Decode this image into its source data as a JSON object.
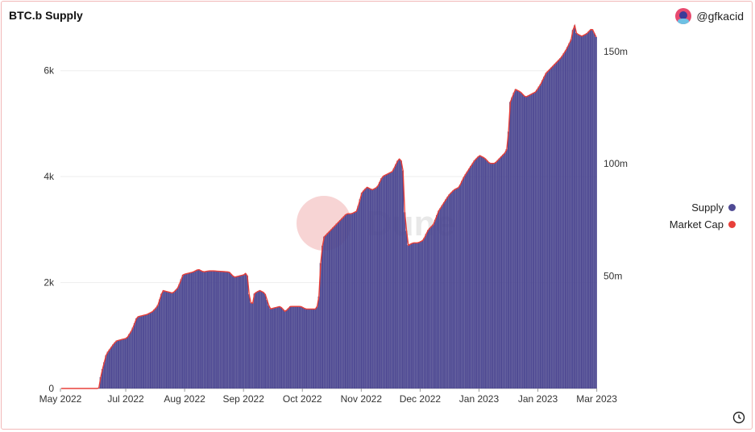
{
  "header": {
    "title": "BTC.b Supply",
    "author": "@gfkacid"
  },
  "watermark": "Dune",
  "colors": {
    "supply": "#4f4a94",
    "supply_stroke": "#3e3a80",
    "market_cap": "#e8403a"
  },
  "legend": [
    {
      "label": "Supply",
      "color": "#4f4a94"
    },
    {
      "label": "Market Cap",
      "color": "#e8403a"
    }
  ],
  "chart_data": {
    "type": "bar",
    "title": "BTC.b Supply",
    "left_axis": {
      "ticks": [
        0,
        2000,
        4000,
        6000
      ],
      "tick_labels": [
        "0",
        "2k",
        "4k",
        "6k"
      ],
      "range": [
        0,
        7000
      ]
    },
    "right_axis": {
      "ticks": [
        50,
        100,
        150
      ],
      "tick_labels": [
        "50m",
        "100m",
        "150m"
      ],
      "range": [
        0,
        165
      ]
    },
    "x_tick_labels": [
      "May 2022",
      "Jul 2022",
      "Aug 2022",
      "Sep 2022",
      "Oct 2022",
      "Nov 2022",
      "Dec 2022",
      "Jan 2023",
      "Jan 2023",
      "Mar 2023"
    ],
    "x_tick_positions": [
      0,
      0.142,
      0.27,
      0.398,
      0.526,
      0.654,
      0.782,
      0.91,
      1.038,
      1.166
    ],
    "series": [
      {
        "name": "Supply",
        "axis": "left",
        "points": [
          [
            0,
            0
          ],
          [
            0.06,
            0
          ],
          [
            0.075,
            0
          ],
          [
            0.08,
            280
          ],
          [
            0.09,
            650
          ],
          [
            0.105,
            850
          ],
          [
            0.11,
            900
          ],
          [
            0.13,
            950
          ],
          [
            0.14,
            1100
          ],
          [
            0.15,
            1350
          ],
          [
            0.17,
            1400
          ],
          [
            0.18,
            1450
          ],
          [
            0.19,
            1550
          ],
          [
            0.2,
            1850
          ],
          [
            0.22,
            1800
          ],
          [
            0.23,
            1900
          ],
          [
            0.24,
            2150
          ],
          [
            0.26,
            2200
          ],
          [
            0.27,
            2250
          ],
          [
            0.28,
            2200
          ],
          [
            0.29,
            2220
          ],
          [
            0.3,
            2220
          ],
          [
            0.33,
            2200
          ],
          [
            0.34,
            2100
          ],
          [
            0.36,
            2150
          ],
          [
            0.365,
            2200
          ],
          [
            0.37,
            1700
          ],
          [
            0.375,
            1550
          ],
          [
            0.38,
            1800
          ],
          [
            0.39,
            1850
          ],
          [
            0.4,
            1800
          ],
          [
            0.41,
            1500
          ],
          [
            0.43,
            1550
          ],
          [
            0.44,
            1450
          ],
          [
            0.45,
            1550
          ],
          [
            0.47,
            1550
          ],
          [
            0.48,
            1500
          ],
          [
            0.5,
            1500
          ],
          [
            0.505,
            1600
          ],
          [
            0.51,
            2500
          ],
          [
            0.515,
            2850
          ],
          [
            0.53,
            3000
          ],
          [
            0.54,
            3100
          ],
          [
            0.55,
            3200
          ],
          [
            0.56,
            3300
          ],
          [
            0.57,
            3300
          ],
          [
            0.58,
            3350
          ],
          [
            0.59,
            3700
          ],
          [
            0.6,
            3800
          ],
          [
            0.61,
            3750
          ],
          [
            0.62,
            3800
          ],
          [
            0.63,
            4000
          ],
          [
            0.64,
            4050
          ],
          [
            0.65,
            4100
          ],
          [
            0.66,
            4300
          ],
          [
            0.665,
            4350
          ],
          [
            0.67,
            4200
          ],
          [
            0.672,
            3500
          ],
          [
            0.68,
            2700
          ],
          [
            0.69,
            2750
          ],
          [
            0.7,
            2750
          ],
          [
            0.71,
            2800
          ],
          [
            0.72,
            3000
          ],
          [
            0.73,
            3100
          ],
          [
            0.74,
            3350
          ],
          [
            0.75,
            3500
          ],
          [
            0.76,
            3650
          ],
          [
            0.77,
            3750
          ],
          [
            0.78,
            3800
          ],
          [
            0.79,
            4000
          ],
          [
            0.8,
            4150
          ],
          [
            0.81,
            4300
          ],
          [
            0.82,
            4400
          ],
          [
            0.83,
            4350
          ],
          [
            0.84,
            4250
          ],
          [
            0.85,
            4250
          ],
          [
            0.86,
            4350
          ],
          [
            0.87,
            4450
          ],
          [
            0.875,
            4550
          ],
          [
            0.88,
            5400
          ],
          [
            0.89,
            5650
          ],
          [
            0.9,
            5600
          ],
          [
            0.91,
            5500
          ],
          [
            0.92,
            5550
          ],
          [
            0.93,
            5600
          ],
          [
            0.94,
            5750
          ],
          [
            0.95,
            5950
          ],
          [
            0.96,
            6050
          ],
          [
            0.97,
            6150
          ],
          [
            0.98,
            6250
          ],
          [
            0.99,
            6400
          ],
          [
            1.0,
            6600
          ],
          [
            1.005,
            6900
          ],
          [
            1.01,
            6700
          ],
          [
            1.02,
            6650
          ],
          [
            1.03,
            6700
          ],
          [
            1.04,
            6800
          ],
          [
            1.05,
            6600
          ]
        ]
      },
      {
        "name": "Market Cap",
        "axis": "right",
        "follows": "Supply"
      }
    ]
  }
}
